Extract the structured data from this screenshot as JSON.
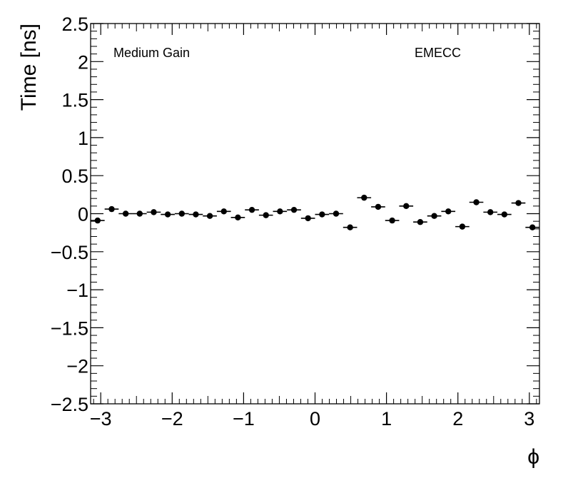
{
  "chart_data": {
    "type": "scatter",
    "title": "",
    "xlabel": "ϕ",
    "ylabel": "Time [ns]",
    "xlim": [
      -3.1416,
      3.1416
    ],
    "ylim": [
      -2.5,
      2.5
    ],
    "grid": false,
    "x_ticks": [
      -3,
      -2,
      -1,
      0,
      1,
      2,
      3
    ],
    "x_tick_labels": [
      "−3",
      "−2",
      "−1",
      "0",
      "1",
      "2",
      "3"
    ],
    "y_ticks": [
      -2.5,
      -2,
      -1.5,
      -1,
      -0.5,
      0,
      0.5,
      1,
      1.5,
      2,
      2.5
    ],
    "y_tick_labels": [
      "−2.5",
      "−2",
      "−1.5",
      "−1",
      "−0.5",
      "0",
      "0.5",
      "1",
      "1.5",
      "2",
      "2.5"
    ],
    "annotations": [
      {
        "text": "Medium Gain",
        "position": "top-left"
      },
      {
        "text": "EMECC",
        "position": "top-right"
      }
    ],
    "bin_width": 0.19635,
    "marker_color": "#000000",
    "x": [
      -3.0434,
      -2.8471,
      -2.6507,
      -2.4544,
      -2.258,
      -2.0617,
      -1.8653,
      -1.669,
      -1.4726,
      -1.2763,
      -1.0799,
      -0.8836,
      -0.6872,
      -0.4909,
      -0.2945,
      -0.0982,
      0.0982,
      0.2945,
      0.4909,
      0.6872,
      0.8836,
      1.0799,
      1.2763,
      1.4726,
      1.669,
      1.8653,
      2.0617,
      2.258,
      2.4544,
      2.6507,
      2.8471,
      3.0434
    ],
    "y": [
      -0.09,
      0.06,
      0.0,
      0.0,
      0.02,
      -0.01,
      0.0,
      -0.01,
      -0.03,
      0.03,
      -0.05,
      0.05,
      -0.02,
      0.03,
      0.05,
      -0.06,
      -0.01,
      0.0,
      -0.18,
      0.21,
      0.09,
      -0.09,
      0.1,
      -0.11,
      -0.03,
      0.03,
      -0.17,
      0.15,
      0.02,
      -0.01,
      0.14,
      -0.18
    ]
  }
}
